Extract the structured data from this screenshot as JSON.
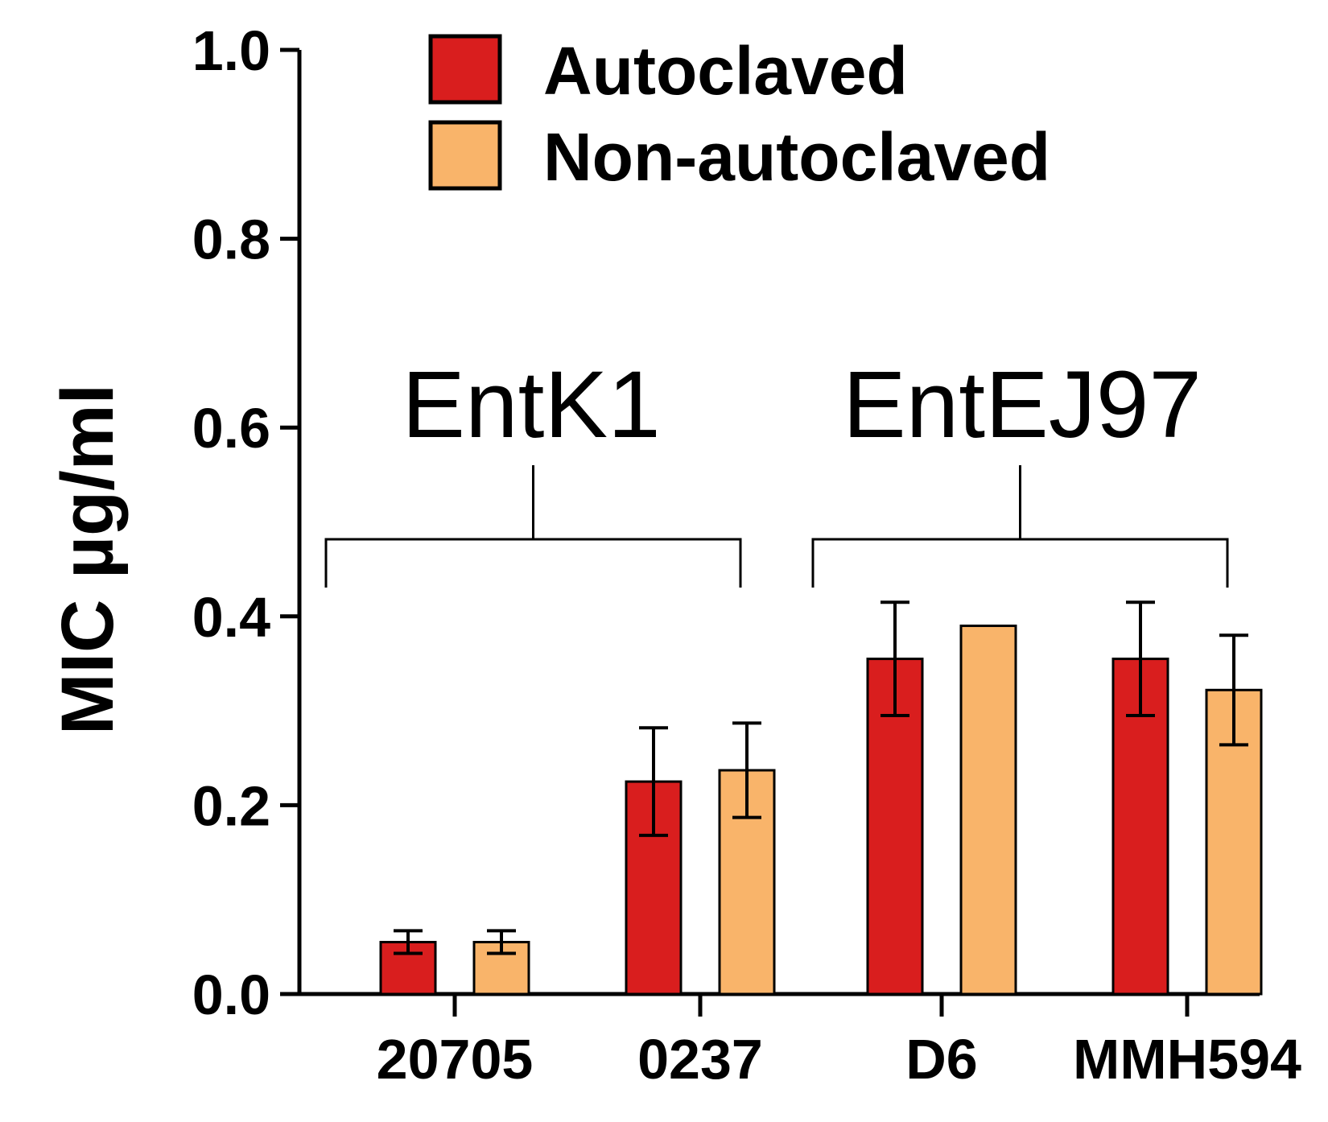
{
  "chart_data": {
    "type": "bar",
    "categories": [
      "20705",
      "0237",
      "D6",
      "MMH594"
    ],
    "ylabel": "MIC µg/ml",
    "xlabel": "",
    "ylim": [
      0,
      1.0
    ],
    "yticks": [
      "0.0",
      "0.2",
      "0.4",
      "0.6",
      "0.8",
      "1.0"
    ],
    "legend_position": "top",
    "grid": false,
    "series": [
      {
        "name": "Autoclaved",
        "color": "#d91e1e",
        "values": [
          0.055,
          0.225,
          0.355,
          0.355
        ],
        "errors": [
          0.012,
          0.057,
          0.06,
          0.06
        ]
      },
      {
        "name": "Non-autoclaved",
        "color": "#f9b46a",
        "values": [
          0.055,
          0.237,
          0.39,
          0.322
        ],
        "errors": [
          0.012,
          0.05,
          0,
          0.058
        ]
      }
    ],
    "groups": [
      {
        "label": "EntK1",
        "categories": [
          "20705",
          "0237"
        ]
      },
      {
        "label": "EntEJ97",
        "categories": [
          "D6",
          "MMH594"
        ]
      }
    ]
  }
}
